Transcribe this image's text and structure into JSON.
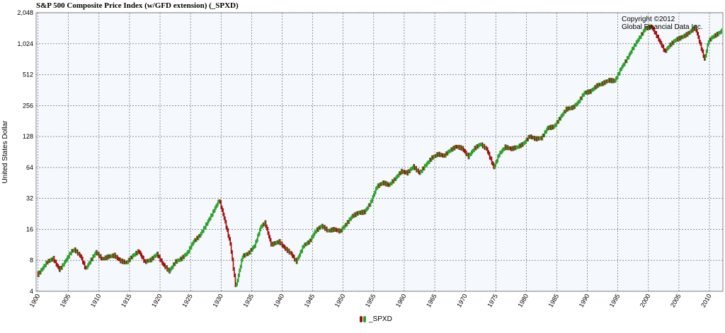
{
  "chart_data": {
    "type": "line",
    "style": "ohlc-bars",
    "title": "S&P 500 Composite Price Index (w/GFD extension) (_SPXD)",
    "ylabel": "United States Dollar",
    "xlabel": "",
    "yscale": "log2",
    "ylim": [
      4,
      2048
    ],
    "xlim": [
      1899.7,
      2012.2
    ],
    "yticks": [
      "4",
      "8",
      "16",
      "32",
      "64",
      "128",
      "256",
      "512",
      "1,024",
      "2,048"
    ],
    "ytick_values": [
      4,
      8,
      16,
      32,
      64,
      128,
      256,
      512,
      1024,
      2048
    ],
    "xticks": [
      "1900",
      "1905",
      "1910",
      "1915",
      "1920",
      "1925",
      "1930",
      "1935",
      "1940",
      "1945",
      "1950",
      "1955",
      "1960",
      "1965",
      "1970",
      "1975",
      "1980",
      "1985",
      "1990",
      "1995",
      "2000",
      "2005",
      "2010"
    ],
    "xtick_values": [
      1900,
      1905,
      1910,
      1915,
      1920,
      1925,
      1930,
      1935,
      1940,
      1945,
      1950,
      1955,
      1960,
      1965,
      1970,
      1975,
      1980,
      1985,
      1990,
      1995,
      2000,
      2005,
      2010
    ],
    "grid": true,
    "legend_position": "bottom-center",
    "annotation": [
      "Copyright ©2012",
      "Global Financial Data Inc."
    ],
    "colors": {
      "up": "#2ca02c",
      "down": "#a01010",
      "plot_bg": "#f5f8fc",
      "grid": "#555555"
    },
    "series": [
      {
        "name": "_SPXD",
        "x": [
          1900.0,
          1901.5,
          1902.5,
          1903.5,
          1904.0,
          1905.5,
          1906.0,
          1907.0,
          1907.8,
          1909.5,
          1910.5,
          1911.5,
          1912.5,
          1913.5,
          1914.5,
          1915.5,
          1916.5,
          1917.5,
          1918.5,
          1919.5,
          1920.5,
          1921.5,
          1922.5,
          1923.5,
          1924.5,
          1925.5,
          1926.5,
          1927.5,
          1928.5,
          1929.7,
          1930.5,
          1931.5,
          1932.4,
          1933.5,
          1934.5,
          1935.5,
          1936.5,
          1937.2,
          1938.2,
          1939.5,
          1940.5,
          1941.5,
          1942.3,
          1943.5,
          1944.5,
          1945.5,
          1946.5,
          1947.5,
          1948.5,
          1949.5,
          1950.5,
          1951.5,
          1952.5,
          1953.5,
          1954.5,
          1955.5,
          1956.5,
          1957.5,
          1958.5,
          1959.5,
          1960.5,
          1961.5,
          1962.5,
          1963.5,
          1964.5,
          1965.5,
          1966.5,
          1967.5,
          1968.5,
          1969.5,
          1970.5,
          1971.5,
          1972.5,
          1973.5,
          1974.7,
          1975.5,
          1976.5,
          1977.5,
          1978.5,
          1979.5,
          1980.5,
          1981.5,
          1982.5,
          1983.5,
          1984.5,
          1985.5,
          1986.5,
          1987.7,
          1988.5,
          1989.5,
          1990.5,
          1991.5,
          1992.5,
          1993.5,
          1994.5,
          1995.5,
          1996.5,
          1997.5,
          1998.5,
          1999.5,
          2000.5,
          2001.5,
          2002.7,
          2003.5,
          2004.5,
          2005.5,
          2006.5,
          2007.7,
          2008.5,
          2009.2,
          2009.8,
          2010.5,
          2011.5,
          2012.0
        ],
        "values": [
          6.0,
          8.0,
          8.5,
          6.5,
          7.0,
          9.5,
          9.8,
          8.5,
          6.5,
          9.8,
          8.5,
          9.0,
          9.2,
          8.0,
          7.5,
          8.6,
          9.5,
          7.5,
          8.0,
          9.3,
          7.5,
          6.5,
          8.0,
          8.5,
          9.5,
          12.0,
          13.5,
          17.0,
          22.0,
          31.0,
          21.0,
          12.0,
          4.5,
          9.0,
          9.5,
          11.0,
          16.5,
          18.0,
          11.0,
          12.0,
          10.5,
          9.5,
          8.0,
          11.5,
          12.5,
          15.5,
          17.0,
          15.0,
          15.5,
          15.0,
          18.0,
          22.0,
          24.0,
          24.5,
          30.0,
          42.0,
          45.0,
          42.0,
          48.0,
          57.0,
          56.0,
          66.0,
          58.0,
          70.0,
          82.0,
          88.0,
          83.0,
          92.0,
          99.0,
          95.0,
          80.0,
          98.0,
          110.0,
          100.0,
          66.0,
          88.0,
          102.0,
          96.0,
          98.0,
          105.0,
          125.0,
          120.0,
          125.0,
          160.0,
          165.0,
          200.0,
          240.0,
          245.0,
          270.0,
          330.0,
          340.0,
          390.0,
          420.0,
          460.0,
          460.0,
          610.0,
          750.0,
          950.0,
          1150.0,
          1400.0,
          1450.0,
          1150.0,
          850.0,
          1000.0,
          1150.0,
          1230.0,
          1330.0,
          1500.0,
          1000.0,
          700.0,
          1050.0,
          1150.0,
          1250.0,
          1330.0
        ]
      }
    ]
  }
}
